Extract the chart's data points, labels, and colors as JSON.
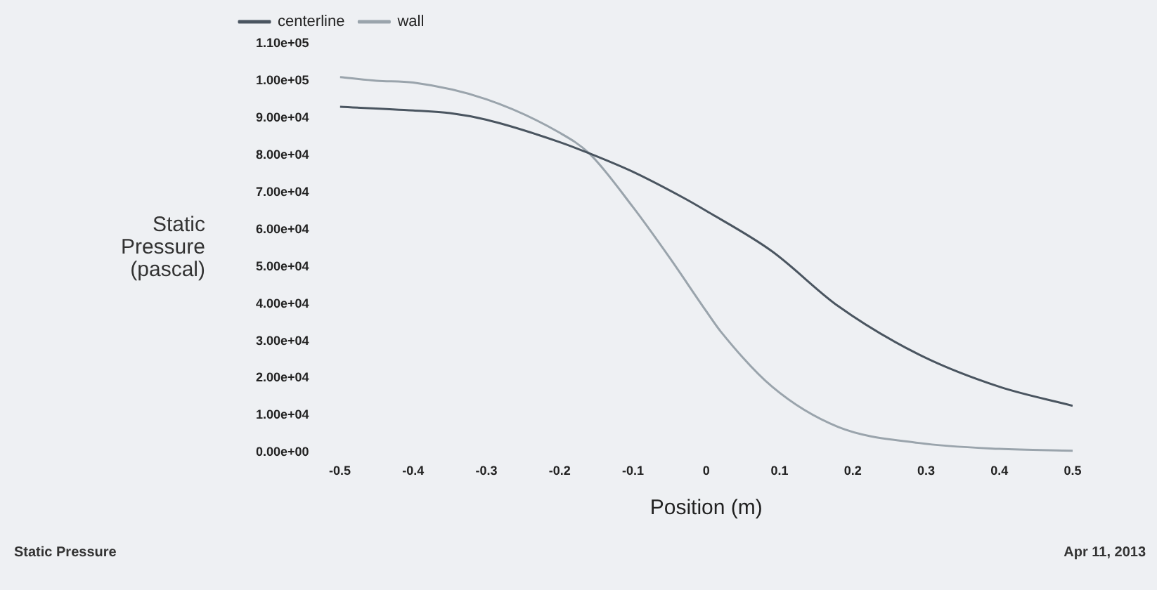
{
  "chart_data": {
    "type": "line",
    "xlabel": "Position (m)",
    "ylabel": "Static Pressure (pascal)",
    "xlim": [
      -0.5,
      0.5
    ],
    "xticks": [
      -0.5,
      -0.4,
      -0.3,
      -0.2,
      -0.1,
      0,
      0.1,
      0.2,
      0.3,
      0.4,
      0.5
    ],
    "ylim": [
      0,
      110000
    ],
    "yticks": [
      {
        "value": 0,
        "label": "0.00e+00"
      },
      {
        "value": 10000,
        "label": "1.00e+04"
      },
      {
        "value": 20000,
        "label": "2.00e+04"
      },
      {
        "value": 30000,
        "label": "3.00e+04"
      },
      {
        "value": 40000,
        "label": "4.00e+04"
      },
      {
        "value": 50000,
        "label": "5.00e+04"
      },
      {
        "value": 60000,
        "label": "6.00e+04"
      },
      {
        "value": 70000,
        "label": "7.00e+04"
      },
      {
        "value": 80000,
        "label": "8.00e+04"
      },
      {
        "value": 90000,
        "label": "9.00e+04"
      },
      {
        "value": 100000,
        "label": "1.00e+05"
      },
      {
        "value": 110000,
        "label": "1.10e+05"
      }
    ],
    "series": [
      {
        "name": "centerline",
        "color": "#4a5560",
        "x": [
          -0.5,
          -0.4,
          -0.35,
          -0.3,
          -0.2,
          -0.16,
          -0.1,
          -0.03,
          0,
          0.09,
          0.18,
          0.29,
          0.4,
          0.5
        ],
        "values": [
          93000,
          92000,
          91300,
          89500,
          83500,
          80500,
          75500,
          68400,
          65000,
          54100,
          39400,
          26400,
          17700,
          12600
        ]
      },
      {
        "name": "wall",
        "color": "#9aa4ac",
        "x": [
          -0.5,
          -0.45,
          -0.4,
          -0.3,
          -0.2,
          -0.16,
          -0.1,
          -0.05,
          0,
          0.02,
          0.09,
          0.18,
          0.29,
          0.4,
          0.5
        ],
        "values": [
          101000,
          100000,
          99500,
          95000,
          86000,
          80500,
          66000,
          52400,
          38000,
          32500,
          17700,
          6900,
          2600,
          1000,
          500
        ]
      }
    ],
    "legend": "top left",
    "marker": "none",
    "line_style": "solid",
    "grid": false,
    "annotations": [
      "Static Pressure",
      "Apr 11, 2013"
    ]
  }
}
